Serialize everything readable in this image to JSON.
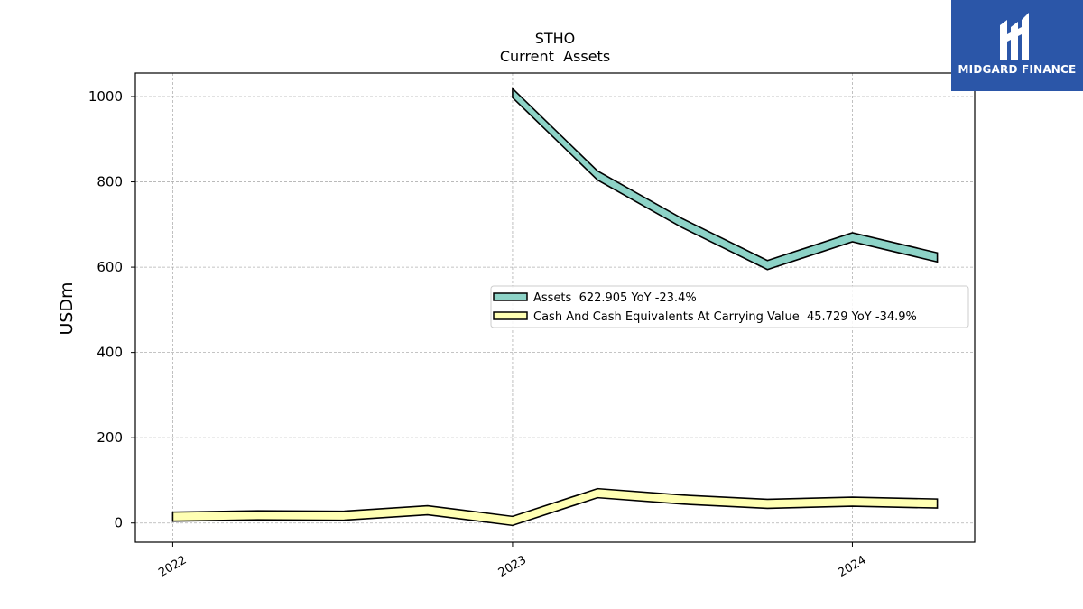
{
  "chart_data": {
    "type": "line",
    "title": "STHO",
    "subtitle": "Current  Assets",
    "ylabel": "USDm",
    "xlabel": "",
    "ylim": [
      -45,
      1055
    ],
    "xlim": [
      2021.89,
      2024.36
    ],
    "yticks": [
      0,
      200,
      400,
      600,
      800,
      1000
    ],
    "xticks": [
      {
        "value": 2022.0,
        "label": "2022"
      },
      {
        "value": 2023.0,
        "label": "2023"
      },
      {
        "value": 2024.0,
        "label": "2024"
      }
    ],
    "grid": true,
    "legend_position": "center-right",
    "series": [
      {
        "name": "Assets  622.905 YoY -23.4%",
        "color": "#8dd3c7",
        "x": [
          2023.0,
          2023.25,
          2023.5,
          2023.75,
          2024.0,
          2024.25
        ],
        "y": [
          1008,
          815,
          703,
          605,
          670,
          623
        ]
      },
      {
        "name": "Cash And Cash Equivalents At Carrying Value  45.729 YoY -34.9%",
        "color": "#ffffb3",
        "x": [
          2022.0,
          2022.25,
          2022.5,
          2022.75,
          2023.0,
          2023.25,
          2023.5,
          2023.75,
          2024.0,
          2024.25
        ],
        "y": [
          15,
          18,
          17,
          30,
          5,
          70,
          55,
          45,
          50,
          45.729
        ]
      }
    ]
  },
  "logo": {
    "text": "MIDGARD FINANCE",
    "bg_color": "#2b56a8"
  }
}
